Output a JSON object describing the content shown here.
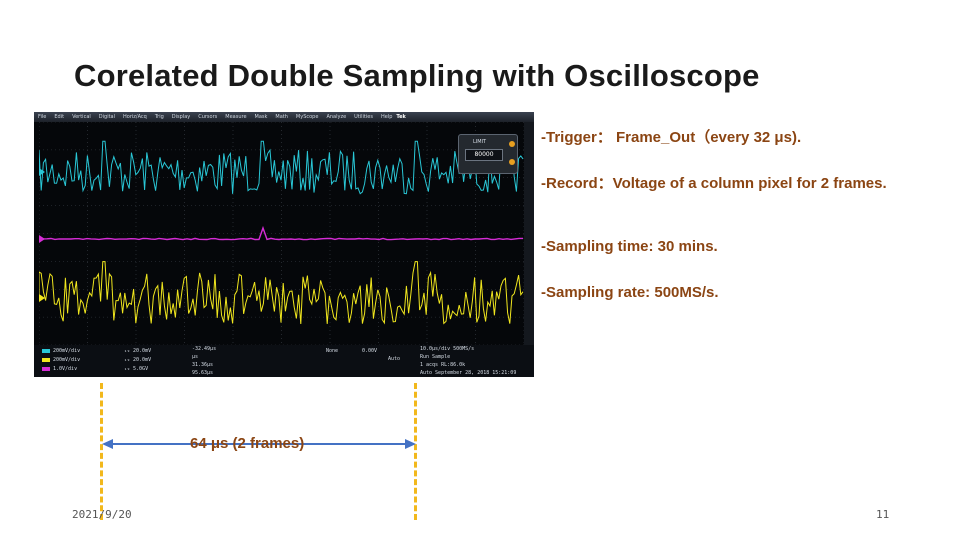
{
  "slide": {
    "title": "Corelated Double Sampling with Oscilloscope",
    "date": "2021/9/20",
    "page_number": "11"
  },
  "bullets": [
    "-Trigger： Frame_Out（every 32 μs).",
    "-Record：Voltage of a column pixel for 2 frames.",
    "-Sampling time: 30 mins.",
    "-Sampling rate: 500MS/s."
  ],
  "annotation": {
    "span_label": "64 μs (2 frames)",
    "line_color": "#f2b81c",
    "arrow_color": "#4472c4"
  },
  "oscilloscope": {
    "menu_items": [
      "File",
      "Edit",
      "Vertical",
      "Digital",
      "Horiz/Acq",
      "Trig",
      "Display",
      "Cursors",
      "Measure",
      "Mask",
      "Math",
      "MyScope",
      "Analyze",
      "Utilities",
      "Help"
    ],
    "brand": "Tek",
    "popup": {
      "label": "LIMIT",
      "value": "80000"
    },
    "channel_colors": {
      "ch1": "#f0e61e",
      "ch2": "#29c7d6",
      "ch3": "#d62cd6",
      "ch4": "#3ac83a"
    },
    "status": {
      "channels": [
        "200mV/div",
        "200mV/div",
        "1.0V/div"
      ],
      "channel_extra": [
        "₁₉ 20.0mV",
        "₁₉ 20.0mV",
        "₁₉ 5.0GV"
      ],
      "cursor_readout": [
        "-32.49μs",
        "μs",
        "31.36μs",
        "95.63μs"
      ],
      "trigger": [
        "None",
        "0.00V",
        "Auto"
      ],
      "horizontal": [
        "10.0μs/div  500MS/s",
        "Run  Sample",
        "1 acqs  RL:86.0k",
        "Auto  September 28, 2018  15:21:09"
      ]
    }
  }
}
